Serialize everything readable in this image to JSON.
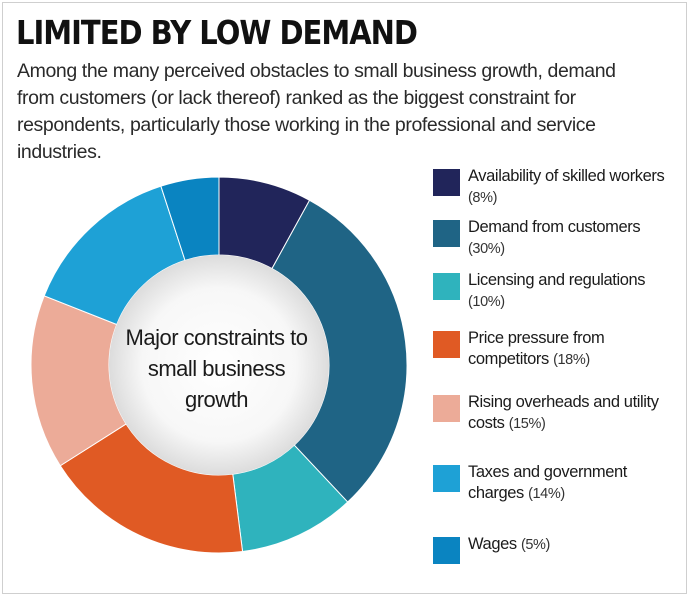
{
  "title": "LIMITED BY LOW DEMAND",
  "subtitle": "Among the many perceived obstacles to small business growth, demand from customers (or lack thereof) ranked as the biggest constraint for respondents, particularly those working in the professional and service industries.",
  "chart_data": {
    "type": "pie",
    "style": "donut",
    "center_label": "Major constraints to small business growth",
    "legend_position": "right",
    "slices": [
      {
        "label": "Availability of skilled workers",
        "pct_label": "(8%)",
        "value": 8,
        "color": "#21255a"
      },
      {
        "label": "Demand from customers",
        "pct_label": "(30%)",
        "value": 30,
        "color": "#1f6485"
      },
      {
        "label": "Licensing and regulations",
        "pct_label": "(10%)",
        "value": 10,
        "color": "#2fb3bd"
      },
      {
        "label": "Price pressure from competitors",
        "pct_label": "(18%)",
        "value": 18,
        "color": "#e05a24"
      },
      {
        "label": "Rising overheads and utility costs",
        "pct_label": "(15%)",
        "value": 15,
        "color": "#ecab98"
      },
      {
        "label": "Taxes and government charges",
        "pct_label": "(14%)",
        "value": 14,
        "color": "#1ea1d6"
      },
      {
        "label": "Wages",
        "pct_label": "(5%)",
        "value": 5,
        "color": "#0a84c1"
      }
    ]
  }
}
